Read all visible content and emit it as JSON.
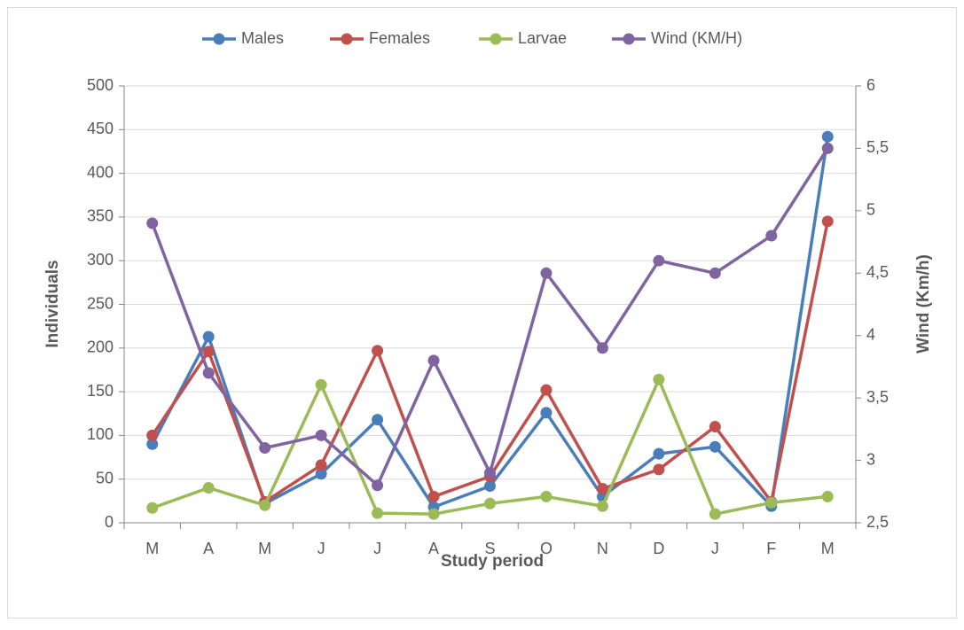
{
  "chart_data": {
    "type": "line",
    "categories": [
      "M",
      "A",
      "M",
      "J",
      "J",
      "A",
      "S",
      "O",
      "N",
      "D",
      "J",
      "F",
      "M"
    ],
    "series": [
      {
        "name": "Males",
        "color": "#4a7ebb",
        "values": [
          90,
          213,
          22,
          56,
          118,
          18,
          42,
          126,
          30,
          79,
          87,
          19,
          442
        ]
      },
      {
        "name": "Females",
        "color": "#c0504d",
        "values": [
          100,
          196,
          24,
          66,
          197,
          30,
          53,
          152,
          39,
          61,
          110,
          24,
          345
        ]
      },
      {
        "name": "Larvae",
        "color": "#9bbb59",
        "values": [
          17,
          40,
          20,
          158,
          11,
          10,
          22,
          30,
          19,
          164,
          10,
          23,
          30
        ]
      },
      {
        "name": "Wind (KM/H)",
        "color": "#8064a2",
        "axis": "y2",
        "values": [
          4.9,
          3.7,
          3.1,
          3.2,
          2.8,
          3.8,
          2.9,
          4.5,
          3.9,
          4.6,
          4.5,
          4.8,
          5.5
        ]
      }
    ],
    "ylim": [
      0,
      500
    ],
    "yticks": [
      0,
      50,
      100,
      150,
      200,
      250,
      300,
      350,
      400,
      450,
      500
    ],
    "y2lim": [
      2.5,
      6
    ],
    "y2ticks": [
      {
        "value": 2.5,
        "label": "2,5"
      },
      3,
      {
        "value": 3.5,
        "label": "3,5"
      },
      4,
      {
        "value": 4.5,
        "label": "4,5"
      },
      5,
      {
        "value": 5.5,
        "label": "5,5"
      },
      6
    ],
    "xlabel": "Study period",
    "ylabel": "Individuals",
    "y2label": "Wind (Km/h)",
    "grid": true,
    "legend": "top"
  }
}
